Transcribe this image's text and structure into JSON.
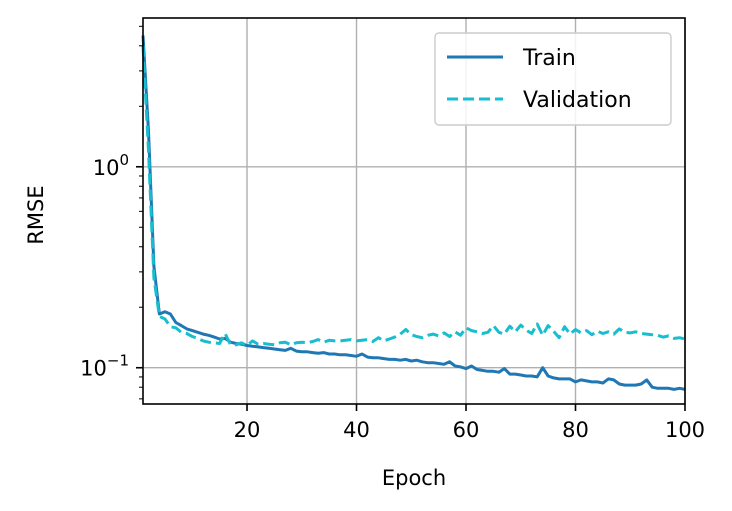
{
  "chart_data": {
    "type": "line",
    "xlabel": "Epoch",
    "ylabel": "RMSE",
    "xlim": [
      1,
      100
    ],
    "ylim": [
      0.066,
      5.5
    ],
    "yscale": "log",
    "grid": true,
    "legend_placement": "top-right",
    "xticks": [
      {
        "value": 20,
        "label": "20"
      },
      {
        "value": 40,
        "label": "40"
      },
      {
        "value": 60,
        "label": "60"
      },
      {
        "value": 80,
        "label": "80"
      },
      {
        "value": 100,
        "label": "100"
      }
    ],
    "yticks": [
      {
        "value": 1,
        "base": "10",
        "exp": "0"
      },
      {
        "value": 0.1,
        "base": "10",
        "exp": "−1"
      }
    ],
    "series": [
      {
        "name": "Train",
        "color": "#1f77b4",
        "linestyle": "solid",
        "x": [
          1,
          2,
          3,
          4,
          5,
          6,
          7,
          8,
          9,
          10,
          11,
          12,
          13,
          14,
          15,
          16,
          17,
          18,
          19,
          20,
          21,
          22,
          23,
          24,
          25,
          26,
          27,
          28,
          29,
          30,
          31,
          32,
          33,
          34,
          35,
          36,
          37,
          38,
          39,
          40,
          41,
          42,
          43,
          44,
          45,
          46,
          47,
          48,
          49,
          50,
          51,
          52,
          53,
          54,
          55,
          56,
          57,
          58,
          59,
          60,
          61,
          62,
          63,
          64,
          65,
          66,
          67,
          68,
          69,
          70,
          71,
          72,
          73,
          74,
          75,
          76,
          77,
          78,
          79,
          80,
          81,
          82,
          83,
          84,
          85,
          86,
          87,
          88,
          89,
          90,
          91,
          92,
          93,
          94,
          95,
          96,
          97,
          98,
          99,
          100
        ],
        "y": [
          4.5,
          1.5,
          0.32,
          0.185,
          0.19,
          0.185,
          0.168,
          0.162,
          0.156,
          0.153,
          0.15,
          0.147,
          0.145,
          0.142,
          0.139,
          0.14,
          0.134,
          0.132,
          0.131,
          0.129,
          0.128,
          0.127,
          0.126,
          0.125,
          0.124,
          0.123,
          0.122,
          0.125,
          0.121,
          0.12,
          0.12,
          0.119,
          0.118,
          0.119,
          0.117,
          0.117,
          0.116,
          0.116,
          0.115,
          0.114,
          0.117,
          0.113,
          0.112,
          0.112,
          0.111,
          0.11,
          0.11,
          0.109,
          0.11,
          0.108,
          0.109,
          0.107,
          0.106,
          0.106,
          0.105,
          0.104,
          0.107,
          0.102,
          0.101,
          0.099,
          0.102,
          0.098,
          0.097,
          0.096,
          0.096,
          0.095,
          0.099,
          0.093,
          0.093,
          0.092,
          0.091,
          0.091,
          0.09,
          0.1,
          0.091,
          0.089,
          0.088,
          0.088,
          0.088,
          0.085,
          0.087,
          0.086,
          0.085,
          0.085,
          0.084,
          0.088,
          0.087,
          0.083,
          0.082,
          0.082,
          0.082,
          0.083,
          0.087,
          0.08,
          0.079,
          0.079,
          0.079,
          0.078,
          0.079,
          0.078
        ]
      },
      {
        "name": "Validation",
        "color": "#17becf",
        "linestyle": "dashed",
        "x": [
          1,
          2,
          3,
          4,
          5,
          6,
          7,
          8,
          9,
          10,
          11,
          12,
          13,
          14,
          15,
          16,
          17,
          18,
          19,
          20,
          21,
          22,
          23,
          24,
          25,
          26,
          27,
          28,
          29,
          30,
          31,
          32,
          33,
          34,
          35,
          36,
          37,
          38,
          39,
          40,
          41,
          42,
          43,
          44,
          45,
          46,
          47,
          48,
          49,
          50,
          51,
          52,
          53,
          54,
          55,
          56,
          57,
          58,
          59,
          60,
          61,
          62,
          63,
          64,
          65,
          66,
          67,
          68,
          69,
          70,
          71,
          72,
          73,
          74,
          75,
          76,
          77,
          78,
          79,
          80,
          81,
          82,
          83,
          84,
          85,
          86,
          87,
          88,
          89,
          90,
          91,
          92,
          93,
          94,
          95,
          96,
          97,
          98,
          99,
          100
        ],
        "y": [
          4.0,
          1.2,
          0.28,
          0.18,
          0.175,
          0.16,
          0.158,
          0.15,
          0.148,
          0.143,
          0.14,
          0.136,
          0.134,
          0.133,
          0.132,
          0.148,
          0.13,
          0.13,
          0.133,
          0.129,
          0.136,
          0.131,
          0.132,
          0.131,
          0.13,
          0.133,
          0.134,
          0.13,
          0.133,
          0.134,
          0.133,
          0.135,
          0.138,
          0.134,
          0.137,
          0.136,
          0.136,
          0.137,
          0.138,
          0.136,
          0.137,
          0.138,
          0.135,
          0.141,
          0.136,
          0.139,
          0.142,
          0.147,
          0.155,
          0.146,
          0.143,
          0.141,
          0.145,
          0.147,
          0.144,
          0.149,
          0.143,
          0.151,
          0.145,
          0.158,
          0.153,
          0.151,
          0.148,
          0.15,
          0.162,
          0.15,
          0.147,
          0.161,
          0.151,
          0.163,
          0.154,
          0.148,
          0.165,
          0.145,
          0.162,
          0.152,
          0.141,
          0.16,
          0.147,
          0.155,
          0.149,
          0.153,
          0.146,
          0.152,
          0.148,
          0.151,
          0.147,
          0.156,
          0.15,
          0.149,
          0.151,
          0.148,
          0.147,
          0.146,
          0.145,
          0.142,
          0.144,
          0.14,
          0.141,
          0.139
        ]
      }
    ]
  }
}
